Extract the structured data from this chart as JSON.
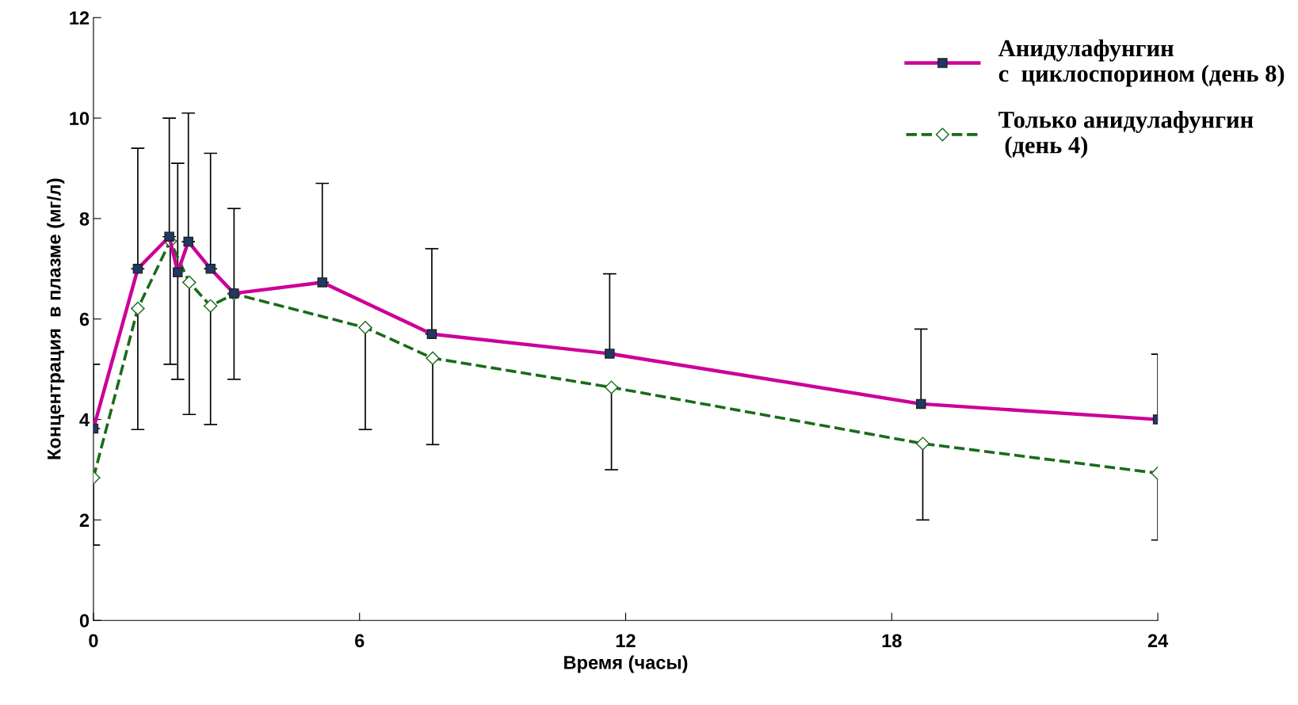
{
  "chart_data": {
    "type": "line",
    "xlabel": "Время (часы)",
    "ylabel": "Концентрация  в плазме (мг/л)",
    "xlim": [
      0,
      24
    ],
    "xticks": [
      0,
      6,
      12,
      18,
      24
    ],
    "ylim": [
      0,
      12
    ],
    "yticks": [
      0,
      2,
      4,
      6,
      8,
      10,
      12
    ],
    "grid": false,
    "legend": "top right",
    "series": [
      {
        "name": "Анидулафунгин\nс  циклоспорином (день 8)",
        "color": "#cc0099",
        "marker": "square",
        "line_style": "solid",
        "x": [
          0,
          1.0,
          1.71,
          1.9,
          2.14,
          2.64,
          3.17,
          5.16,
          7.63,
          11.64,
          18.66,
          24
        ],
        "values": [
          3.82,
          7.0,
          7.64,
          6.93,
          7.54,
          7.0,
          6.51,
          6.73,
          5.7,
          5.31,
          4.31,
          4.0
        ],
        "errors": [
          [
            3.82,
            5.1
          ],
          [
            7.0,
            9.4
          ],
          [
            7.64,
            10.0
          ],
          [
            4.8,
            9.1
          ],
          [
            7.54,
            10.1
          ],
          [
            7.0,
            9.3
          ],
          [
            6.51,
            8.2
          ],
          [
            6.73,
            8.7
          ],
          [
            5.7,
            7.4
          ],
          [
            5.31,
            6.9
          ],
          [
            4.31,
            5.8
          ],
          [
            4.0,
            5.3
          ]
        ]
      },
      {
        "name": "Только анидулафунгин\n (день 4)",
        "color": "#1a6b1a",
        "marker": "diamond",
        "line_style": "dashed",
        "x": [
          0,
          1.0,
          1.73,
          2.16,
          2.64,
          3.17,
          6.13,
          7.65,
          11.68,
          18.7,
          24
        ],
        "values": [
          2.84,
          6.21,
          7.55,
          6.73,
          6.26,
          6.5,
          5.83,
          5.22,
          4.64,
          3.52,
          2.93
        ],
        "errors": [
          [
            1.5,
            2.84
          ],
          [
            3.8,
            6.21
          ],
          [
            5.1,
            7.55
          ],
          [
            4.1,
            6.73
          ],
          [
            3.9,
            6.26
          ],
          [
            4.8,
            6.5
          ],
          [
            3.8,
            5.83
          ],
          [
            3.5,
            5.22
          ],
          [
            3.0,
            4.64
          ],
          [
            2.0,
            3.52
          ],
          [
            1.6,
            2.93
          ]
        ]
      }
    ]
  }
}
